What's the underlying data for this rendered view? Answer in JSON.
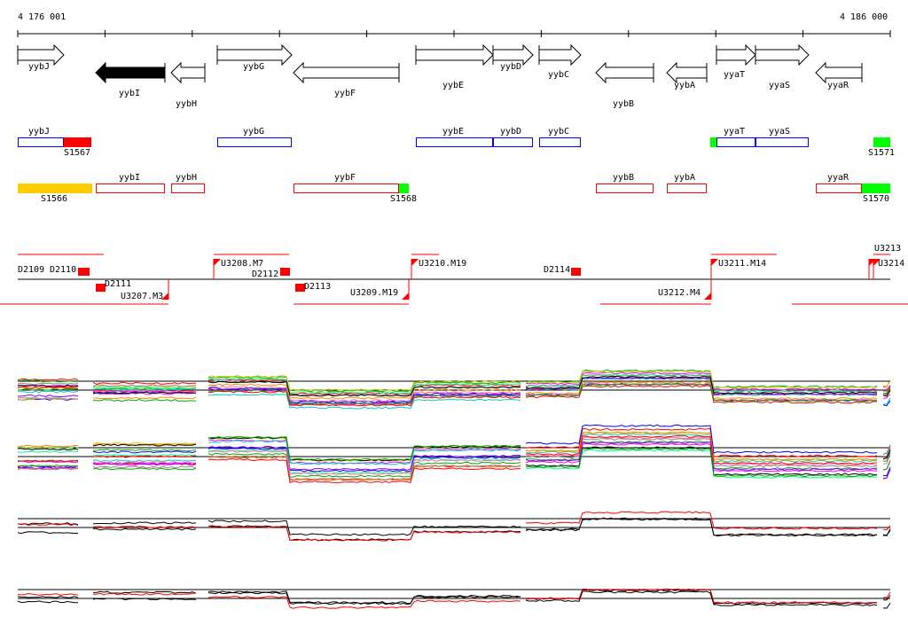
{
  "ruler": {
    "start_label": "4 176 001",
    "end_label": "4 186 000"
  },
  "genes": [
    {
      "name": "yybJ",
      "strand": "+"
    },
    {
      "name": "yybI",
      "strand": "-",
      "highlighted": true
    },
    {
      "name": "yybH",
      "strand": "-"
    },
    {
      "name": "yybG",
      "strand": "+"
    },
    {
      "name": "yybF",
      "strand": "-"
    },
    {
      "name": "yybE",
      "strand": "+"
    },
    {
      "name": "yybD",
      "strand": "+"
    },
    {
      "name": "yybC",
      "strand": "+"
    },
    {
      "name": "yybB",
      "strand": "-"
    },
    {
      "name": "yybA",
      "strand": "-"
    },
    {
      "name": "yyaT",
      "strand": "+"
    },
    {
      "name": "yyaS",
      "strand": "+"
    },
    {
      "name": "yyaR",
      "strand": "-"
    }
  ],
  "forward_track": [
    {
      "label": "yybJ",
      "type": "gene"
    },
    {
      "label": "S1567",
      "type": "segment",
      "color": "#ff0000"
    },
    {
      "label": "yybG",
      "type": "gene"
    },
    {
      "label": "yybE",
      "type": "gene"
    },
    {
      "label": "yybD",
      "type": "gene"
    },
    {
      "label": "yybC",
      "type": "gene"
    },
    {
      "label": "",
      "type": "segment",
      "color": "#00ff00"
    },
    {
      "label": "yyaT",
      "type": "gene"
    },
    {
      "label": "yyaS",
      "type": "gene"
    },
    {
      "label": "S1571",
      "type": "segment",
      "color": "#00ff00"
    }
  ],
  "reverse_track": [
    {
      "label": "S1566",
      "type": "segment",
      "color": "#ffcc00"
    },
    {
      "label": "yybI",
      "type": "gene"
    },
    {
      "label": "yybH",
      "type": "gene"
    },
    {
      "label": "yybF",
      "type": "gene"
    },
    {
      "label": "S1568",
      "type": "segment",
      "color": "#00ff00"
    },
    {
      "label": "yybB",
      "type": "gene"
    },
    {
      "label": "yybA",
      "type": "gene"
    },
    {
      "label": "yyaR",
      "type": "gene"
    },
    {
      "label": "S1570",
      "type": "segment",
      "color": "#00ff00"
    }
  ],
  "features": {
    "downshifts": [
      "D2109",
      "D2110",
      "D2111",
      "D2112",
      "D2113",
      "D2114"
    ],
    "upshifts": [
      "U3207.M3",
      "U3208.M7",
      "U3209.M19",
      "U3210.M19",
      "U3211.M14",
      "U3212.M4",
      "U3213",
      "U3214"
    ]
  },
  "colors": {
    "forward": "#0000ff",
    "reverse": "#ff0000",
    "feature": "#ff0000"
  }
}
